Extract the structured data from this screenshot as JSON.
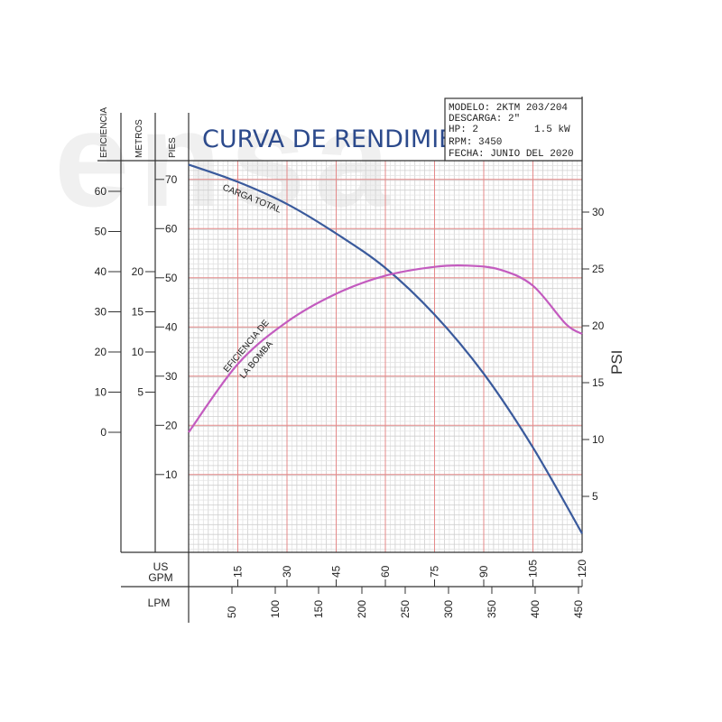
{
  "watermark": "ensa",
  "title": "CURVA DE RENDIMIENTO",
  "info_box": {
    "lines": [
      "MODELO: 2KTM 203/204",
      "DESCARGA: 2\"",
      "HP: 2",
      "1.5 kW",
      "RPM: 3450",
      "FECHA: JUNIO DEL 2020"
    ]
  },
  "chart_data": {
    "type": "line",
    "title": "CURVA DE RENDIMIENTO",
    "x_axes": [
      {
        "label": "US GPM",
        "ticks": [
          15,
          30,
          45,
          60,
          75,
          90,
          105,
          120
        ]
      },
      {
        "label": "LPM",
        "ticks": [
          50,
          100,
          150,
          200,
          250,
          300,
          350,
          400,
          450
        ]
      }
    ],
    "y_axes": [
      {
        "label": "EFICIENCIA",
        "ticks": [
          60,
          50,
          40,
          30,
          20,
          10,
          0
        ]
      },
      {
        "label": "METROS",
        "ticks": [
          20,
          15,
          10,
          5
        ]
      },
      {
        "label": "PIES",
        "ticks": [
          70,
          60,
          50,
          40,
          30,
          20,
          10
        ]
      },
      {
        "label": "PSI",
        "ticks": [
          30,
          25,
          20,
          15,
          10,
          5
        ]
      }
    ],
    "xlim_gpm": [
      0,
      120
    ],
    "series": [
      {
        "name": "CARGA TOTAL",
        "color": "#3a5a9c",
        "x_gpm": [
          0,
          15,
          30,
          45,
          60,
          75,
          90,
          105,
          120
        ],
        "y_pies": [
          73,
          69.5,
          65,
          59,
          52,
          42.5,
          30.5,
          15.5,
          -2
        ]
      },
      {
        "name": "EFICIENCIA DE LA BOMBA",
        "color": "#c35bbf",
        "x_gpm": [
          0,
          15,
          30,
          45,
          60,
          75,
          85,
          95,
          105,
          115,
          120
        ],
        "y_eficiencia": [
          0,
          17,
          27.5,
          34.5,
          39,
          41.2,
          41.5,
          40.5,
          36.5,
          27,
          24.5
        ]
      }
    ],
    "grid": true
  }
}
